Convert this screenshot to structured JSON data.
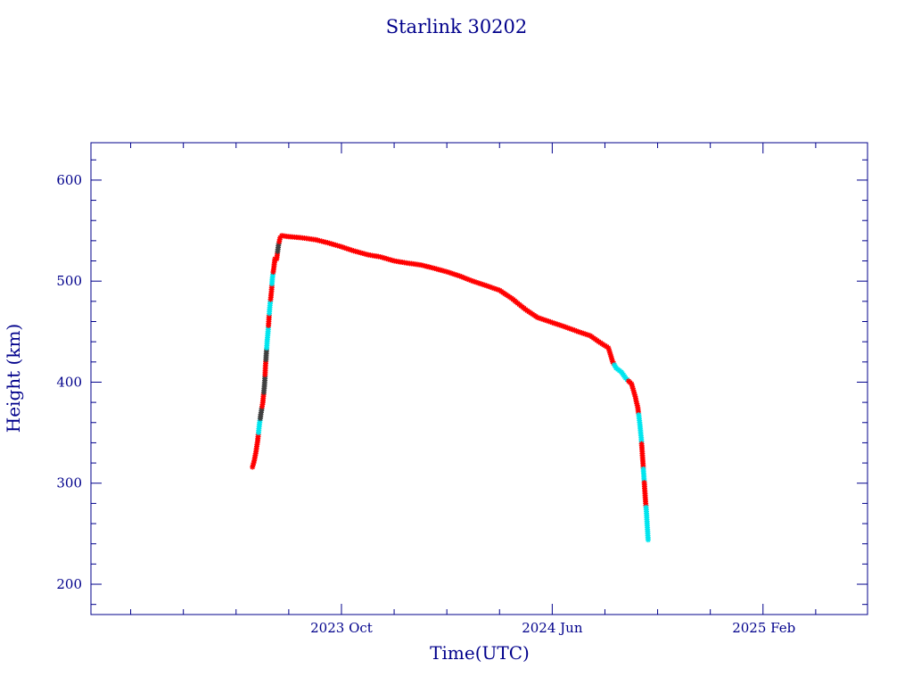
{
  "chart_data": {
    "type": "scatter",
    "title": "Starlink 30202",
    "xlabel": "Time(UTC)",
    "ylabel": "Height (km)",
    "x_ticks": [
      {
        "date": "2023-10-01",
        "label": "2023 Oct"
      },
      {
        "date": "2024-06-01",
        "label": "2024 Jun"
      },
      {
        "date": "2025-02-01",
        "label": "2025 Feb"
      }
    ],
    "y_ticks": [
      200,
      300,
      400,
      500,
      600
    ],
    "xlim": [
      "2022-12-15",
      "2025-06-01"
    ],
    "ylim": [
      170,
      637
    ],
    "grid": false,
    "colors": {
      "frame": "#00008b",
      "line": "#8b0000",
      "marker_primary": "#ff0000",
      "marker_secondary": "#00e5ee",
      "marker_dark": "#404040"
    },
    "series": [
      {
        "marker_color": "mixed",
        "points": [
          {
            "x": "2023-06-20",
            "y": 316,
            "c": "red"
          },
          {
            "x": "2023-06-22",
            "y": 322,
            "c": "red"
          },
          {
            "x": "2023-06-24",
            "y": 331,
            "c": "red"
          },
          {
            "x": "2023-06-26",
            "y": 342,
            "c": "red"
          },
          {
            "x": "2023-06-28",
            "y": 358,
            "c": "cyan"
          },
          {
            "x": "2023-06-30",
            "y": 370,
            "c": "dark"
          },
          {
            "x": "2023-07-02",
            "y": 380,
            "c": "red"
          },
          {
            "x": "2023-07-04",
            "y": 398,
            "c": "dark"
          },
          {
            "x": "2023-07-05",
            "y": 415,
            "c": "red"
          },
          {
            "x": "2023-07-06",
            "y": 428,
            "c": "dark"
          },
          {
            "x": "2023-07-07",
            "y": 440,
            "c": "cyan"
          },
          {
            "x": "2023-07-08",
            "y": 450,
            "c": "cyan"
          },
          {
            "x": "2023-07-09",
            "y": 462,
            "c": "red"
          },
          {
            "x": "2023-07-10",
            "y": 474,
            "c": "cyan"
          },
          {
            "x": "2023-07-12",
            "y": 490,
            "c": "red"
          },
          {
            "x": "2023-07-13",
            "y": 503,
            "c": "cyan"
          },
          {
            "x": "2023-07-15",
            "y": 515,
            "c": "red"
          },
          {
            "x": "2023-07-16",
            "y": 522,
            "c": "red"
          },
          {
            "x": "2023-07-18",
            "y": 522,
            "c": "red"
          },
          {
            "x": "2023-07-20",
            "y": 535,
            "c": "dark"
          },
          {
            "x": "2023-07-22",
            "y": 543,
            "c": "red"
          },
          {
            "x": "2023-07-24",
            "y": 545,
            "c": "red"
          },
          {
            "x": "2023-08-01",
            "y": 544,
            "c": "red"
          },
          {
            "x": "2023-08-15",
            "y": 543,
            "c": "red"
          },
          {
            "x": "2023-09-01",
            "y": 541,
            "c": "red"
          },
          {
            "x": "2023-09-15",
            "y": 538,
            "c": "red"
          },
          {
            "x": "2023-10-01",
            "y": 534,
            "c": "red"
          },
          {
            "x": "2023-10-15",
            "y": 530,
            "c": "red"
          },
          {
            "x": "2023-11-01",
            "y": 526,
            "c": "red"
          },
          {
            "x": "2023-11-15",
            "y": 524,
            "c": "red"
          },
          {
            "x": "2023-12-01",
            "y": 520,
            "c": "red"
          },
          {
            "x": "2023-12-15",
            "y": 518,
            "c": "red"
          },
          {
            "x": "2024-01-01",
            "y": 516,
            "c": "red"
          },
          {
            "x": "2024-01-15",
            "y": 513,
            "c": "red"
          },
          {
            "x": "2024-02-01",
            "y": 509,
            "c": "red"
          },
          {
            "x": "2024-02-15",
            "y": 505,
            "c": "red"
          },
          {
            "x": "2024-03-01",
            "y": 500,
            "c": "red"
          },
          {
            "x": "2024-03-15",
            "y": 496,
            "c": "red"
          },
          {
            "x": "2024-04-01",
            "y": 491,
            "c": "red"
          },
          {
            "x": "2024-04-15",
            "y": 483,
            "c": "red"
          },
          {
            "x": "2024-05-01",
            "y": 472,
            "c": "red"
          },
          {
            "x": "2024-05-15",
            "y": 464,
            "c": "red"
          },
          {
            "x": "2024-06-01",
            "y": 459,
            "c": "red"
          },
          {
            "x": "2024-06-15",
            "y": 455,
            "c": "red"
          },
          {
            "x": "2024-07-01",
            "y": 450,
            "c": "red"
          },
          {
            "x": "2024-07-15",
            "y": 446,
            "c": "red"
          },
          {
            "x": "2024-07-25",
            "y": 440,
            "c": "red"
          },
          {
            "x": "2024-08-05",
            "y": 434,
            "c": "red"
          },
          {
            "x": "2024-08-10",
            "y": 420,
            "c": "red"
          },
          {
            "x": "2024-08-14",
            "y": 414,
            "c": "cyan"
          },
          {
            "x": "2024-08-20",
            "y": 410,
            "c": "cyan"
          },
          {
            "x": "2024-08-25",
            "y": 404,
            "c": "cyan"
          },
          {
            "x": "2024-09-01",
            "y": 398,
            "c": "red"
          },
          {
            "x": "2024-09-05",
            "y": 386,
            "c": "red"
          },
          {
            "x": "2024-09-08",
            "y": 375,
            "c": "red"
          },
          {
            "x": "2024-09-10",
            "y": 362,
            "c": "cyan"
          },
          {
            "x": "2024-09-12",
            "y": 345,
            "c": "cyan"
          },
          {
            "x": "2024-09-13",
            "y": 333,
            "c": "red"
          },
          {
            "x": "2024-09-14",
            "y": 320,
            "c": "red"
          },
          {
            "x": "2024-09-15",
            "y": 308,
            "c": "cyan"
          },
          {
            "x": "2024-09-16",
            "y": 295,
            "c": "red"
          },
          {
            "x": "2024-09-17",
            "y": 282,
            "c": "red"
          },
          {
            "x": "2024-09-18",
            "y": 272,
            "c": "cyan"
          },
          {
            "x": "2024-09-19",
            "y": 258,
            "c": "cyan"
          },
          {
            "x": "2024-09-20",
            "y": 244,
            "c": "cyan"
          }
        ]
      }
    ]
  }
}
